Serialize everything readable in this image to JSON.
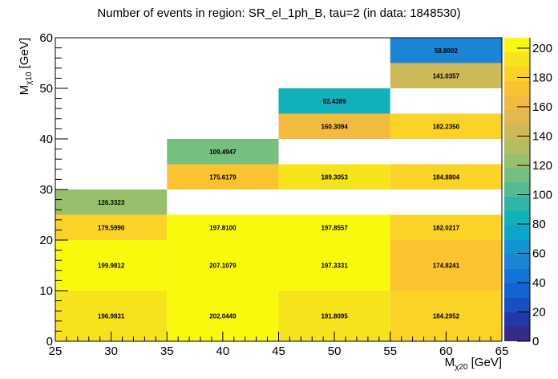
{
  "chart_data": {
    "type": "heatmap",
    "title": "Number of events in region: SR_el_1ph_B, tau=2 (in data: 1848530)",
    "xlabel": {
      "main": "M",
      "sub": "χ20",
      "unit": " [GeV]"
    },
    "ylabel": {
      "main": "M",
      "sub": "χ10",
      "unit": " [GeV]"
    },
    "xlim": [
      25,
      65
    ],
    "ylim": [
      0,
      60
    ],
    "zlim": [
      0,
      207.1079
    ],
    "xticks": [
      25,
      30,
      35,
      40,
      45,
      50,
      55,
      60,
      65
    ],
    "yticks": [
      0,
      10,
      20,
      30,
      40,
      50,
      60
    ],
    "zticks": [
      0,
      20,
      40,
      60,
      80,
      100,
      120,
      140,
      160,
      180,
      200
    ],
    "grid": false,
    "colorbar": "right",
    "palette": [
      "#352a87",
      "#2338a8",
      "#1a4fc4",
      "#1463d3",
      "#1373d8",
      "#1a84d6",
      "#1194d2",
      "#0ca5cb",
      "#11b0bb",
      "#2fb5a8",
      "#52bb93",
      "#75bf7f",
      "#97bf6c",
      "#b4bd5f",
      "#cdb958",
      "#e2b850",
      "#f3ba40",
      "#fcc331",
      "#fbd226",
      "#f7e31b",
      "#f9f90e"
    ],
    "cells": [
      {
        "x": [
          25,
          35
        ],
        "y": [
          0,
          10
        ],
        "value": 196.9831,
        "label": "196.9831"
      },
      {
        "x": [
          35,
          45
        ],
        "y": [
          0,
          10
        ],
        "value": 202.0449,
        "label": "202.0449"
      },
      {
        "x": [
          45,
          55
        ],
        "y": [
          0,
          10
        ],
        "value": 191.8095,
        "label": "191.8095"
      },
      {
        "x": [
          55,
          65
        ],
        "y": [
          0,
          10
        ],
        "value": 184.2952,
        "label": "184.2952"
      },
      {
        "x": [
          25,
          35
        ],
        "y": [
          10,
          20
        ],
        "value": 199.9812,
        "label": "199.9812"
      },
      {
        "x": [
          35,
          45
        ],
        "y": [
          10,
          20
        ],
        "value": 207.1079,
        "label": "207.1079"
      },
      {
        "x": [
          45,
          55
        ],
        "y": [
          10,
          20
        ],
        "value": 197.3331,
        "label": "197.3331"
      },
      {
        "x": [
          55,
          65
        ],
        "y": [
          10,
          20
        ],
        "value": 174.8241,
        "label": "174.8241"
      },
      {
        "x": [
          25,
          35
        ],
        "y": [
          20,
          25
        ],
        "value": 179.599,
        "label": "179.5990"
      },
      {
        "x": [
          35,
          45
        ],
        "y": [
          20,
          25
        ],
        "value": 197.81,
        "label": "197.8100"
      },
      {
        "x": [
          45,
          55
        ],
        "y": [
          20,
          25
        ],
        "value": 197.8557,
        "label": "197.8557"
      },
      {
        "x": [
          55,
          65
        ],
        "y": [
          20,
          25
        ],
        "value": 182.0217,
        "label": "182.0217"
      },
      {
        "x": [
          25,
          35
        ],
        "y": [
          25,
          30
        ],
        "value": 126.3323,
        "label": "126.3323"
      },
      {
        "x": [
          35,
          45
        ],
        "y": [
          30,
          35
        ],
        "value": 175.6179,
        "label": "175.6179"
      },
      {
        "x": [
          45,
          55
        ],
        "y": [
          30,
          35
        ],
        "value": 189.3053,
        "label": "189.3053"
      },
      {
        "x": [
          55,
          65
        ],
        "y": [
          30,
          35
        ],
        "value": 184.8804,
        "label": "184.8804"
      },
      {
        "x": [
          35,
          45
        ],
        "y": [
          35,
          40
        ],
        "value": 109.4947,
        "label": "109.4947"
      },
      {
        "x": [
          45,
          55
        ],
        "y": [
          40,
          45
        ],
        "value": 160.3094,
        "label": "160.3094"
      },
      {
        "x": [
          55,
          65
        ],
        "y": [
          40,
          45
        ],
        "value": 182.235,
        "label": "182.2350"
      },
      {
        "x": [
          45,
          55
        ],
        "y": [
          45,
          50
        ],
        "value": 82.4389,
        "label": "82.4389"
      },
      {
        "x": [
          55,
          65
        ],
        "y": [
          50,
          55
        ],
        "value": 141.0357,
        "label": "141.0357"
      },
      {
        "x": [
          55,
          65
        ],
        "y": [
          55,
          60
        ],
        "value": 58.8602,
        "label": "58.8602"
      }
    ]
  }
}
